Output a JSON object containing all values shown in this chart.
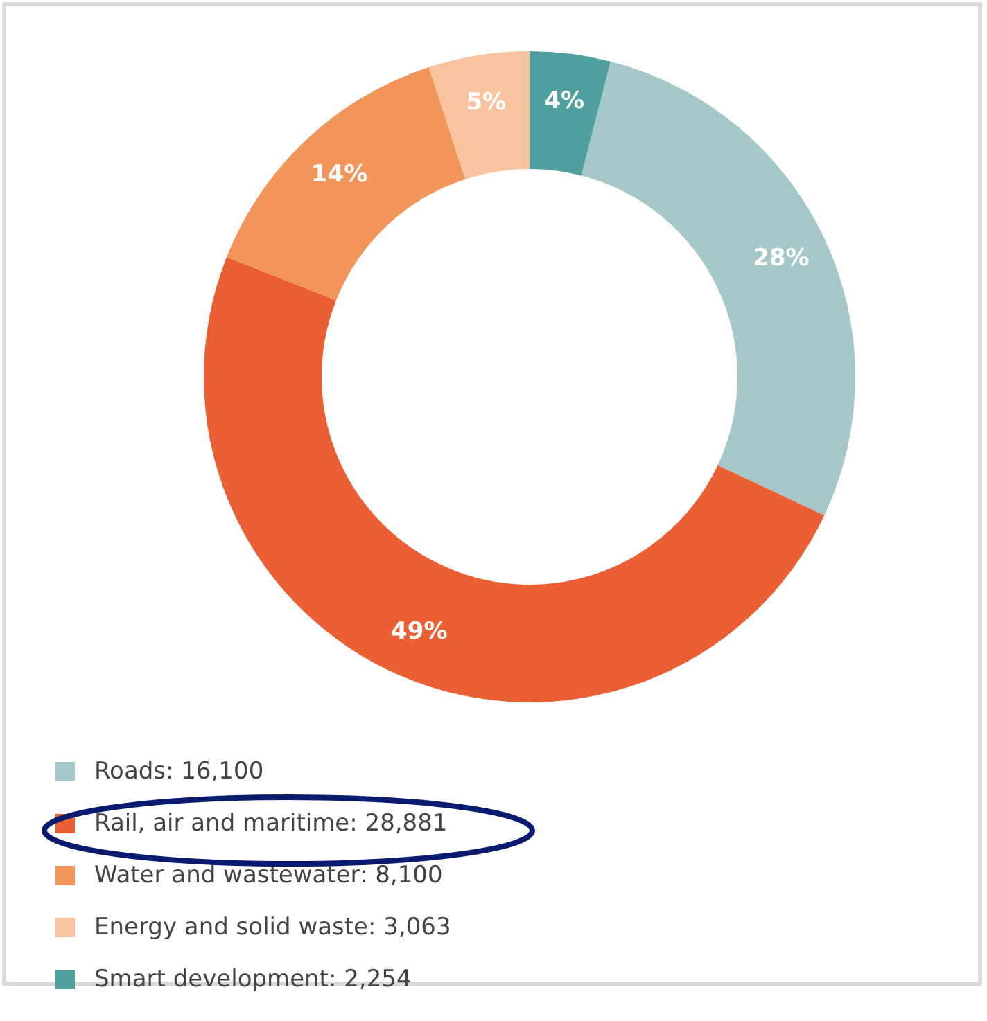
{
  "chart_data": {
    "type": "donut",
    "categories": [
      "Roads: 16,100",
      "Rail, air and maritime: 28,881",
      "Water and wastewater: 8,100",
      "Energy and solid waste: 3,063",
      "Smart development: 2,254"
    ],
    "values": [
      28,
      49,
      14,
      5,
      4
    ],
    "colors": [
      "#a6c7c7",
      "#ea5f33",
      "#f2955a",
      "#f8c4a0",
      "#4e9f9e"
    ],
    "value_labels": [
      "28%",
      "49%",
      "14%",
      "5%",
      "4%"
    ],
    "legend": "bottom left"
  }
}
